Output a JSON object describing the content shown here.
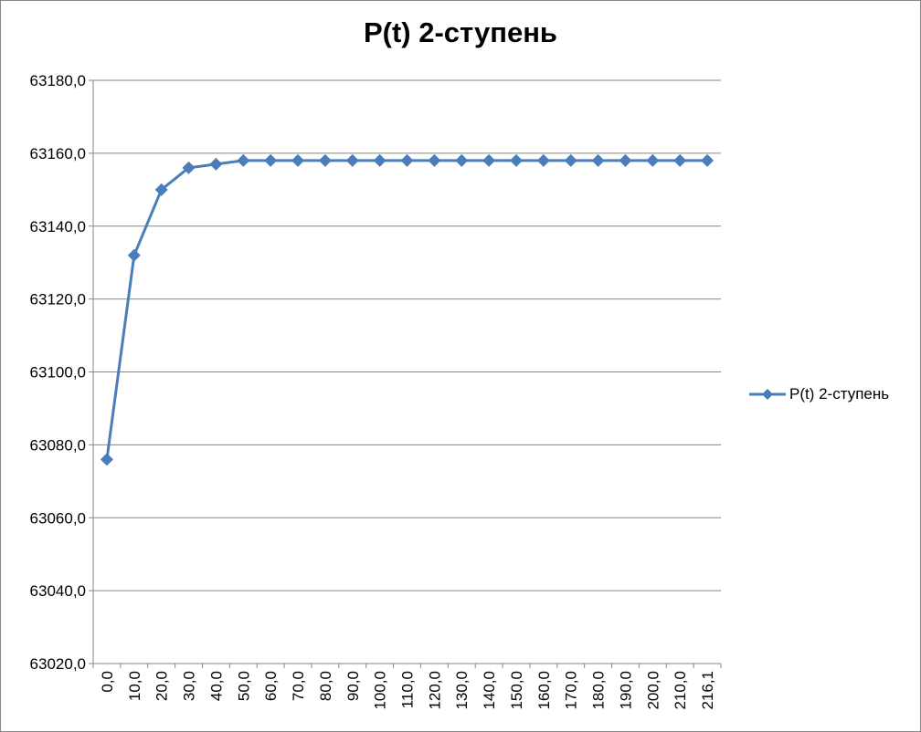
{
  "chart_data": {
    "type": "line",
    "title": "P(t) 2-ступень",
    "xlabel": "",
    "ylabel": "",
    "categories": [
      "0,0",
      "10,0",
      "20,0",
      "30,0",
      "40,0",
      "50,0",
      "60,0",
      "70,0",
      "80,0",
      "90,0",
      "100,0",
      "110,0",
      "120,0",
      "130,0",
      "140,0",
      "150,0",
      "160,0",
      "170,0",
      "180,0",
      "190,0",
      "200,0",
      "210,0",
      "216,1"
    ],
    "series": [
      {
        "name": "P(t) 2-ступень",
        "color": "#4a7ebb",
        "values": [
          63076,
          63132,
          63150,
          63156,
          63157,
          63158,
          63158,
          63158,
          63158,
          63158,
          63158,
          63158,
          63158,
          63158,
          63158,
          63158,
          63158,
          63158,
          63158,
          63158,
          63158,
          63158,
          63158
        ]
      }
    ],
    "ylim": [
      63020,
      63180
    ],
    "y_ticks": [
      "63020,0",
      "63040,0",
      "63060,0",
      "63080,0",
      "63100,0",
      "63120,0",
      "63140,0",
      "63160,0",
      "63180,0"
    ],
    "grid": true,
    "legend_position": "right",
    "marker": "diamond"
  }
}
